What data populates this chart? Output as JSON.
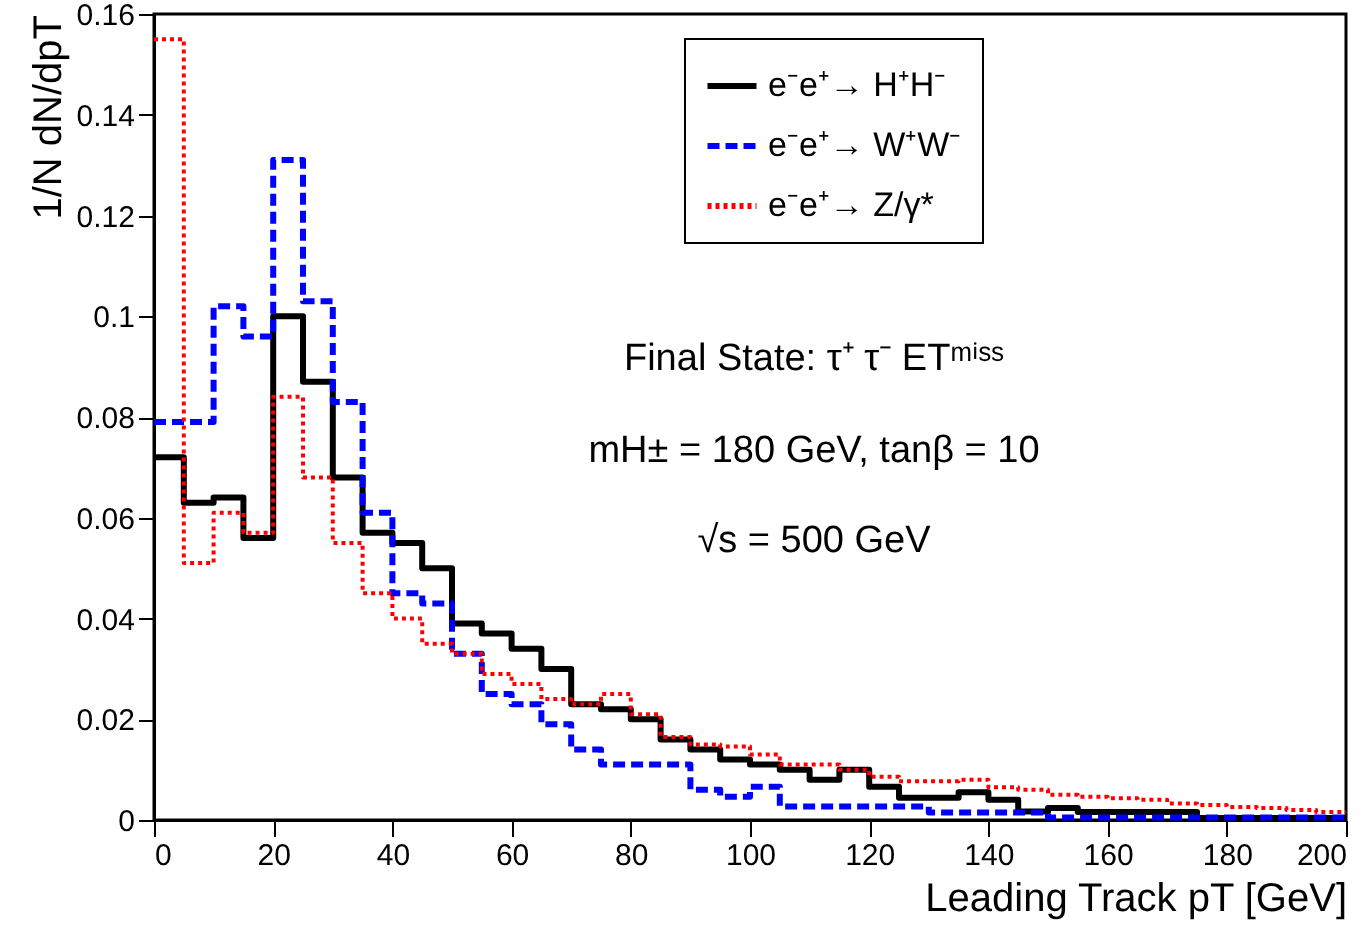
{
  "chart_data": {
    "type": "histogram",
    "xlabel": "Leading Track pT [GeV]",
    "ylabel": "1/N dN/dpT",
    "bins": [
      0,
      5,
      10,
      15,
      20,
      25,
      30,
      35,
      40,
      45,
      50,
      55,
      60,
      65,
      70,
      75,
      80,
      85,
      90,
      95,
      100,
      105,
      110,
      115,
      120,
      125,
      130,
      135,
      140,
      145,
      150,
      155,
      160,
      165,
      170,
      175,
      180,
      185,
      190,
      195,
      200
    ],
    "series": [
      {
        "name": "e⁻e⁺→ H⁺H⁻",
        "color": "#000000",
        "line_style": "solid",
        "values": [
          0.072,
          0.063,
          0.064,
          0.056,
          0.1,
          0.087,
          0.068,
          0.057,
          0.055,
          0.05,
          0.039,
          0.037,
          0.034,
          0.03,
          0.023,
          0.022,
          0.02,
          0.016,
          0.014,
          0.012,
          0.011,
          0.01,
          0.008,
          0.01,
          0.0066,
          0.0044,
          0.0044,
          0.0055,
          0.004,
          0.0017,
          0.0024,
          0.0016,
          0.0016,
          0.0016,
          0.0016,
          0.0004,
          0.0004,
          0.0004,
          0.0004,
          0.0004
        ]
      },
      {
        "name": "e⁻e⁺→ W⁺W⁻",
        "color": "#0000ff",
        "line_style": "dashed",
        "values": [
          0.079,
          0.079,
          0.102,
          0.096,
          0.131,
          0.103,
          0.083,
          0.061,
          0.045,
          0.043,
          0.033,
          0.025,
          0.023,
          0.019,
          0.014,
          0.011,
          0.011,
          0.011,
          0.006,
          0.0046,
          0.0066,
          0.0027,
          0.0027,
          0.0027,
          0.0027,
          0.0027,
          0.0015,
          0.0015,
          0.0015,
          0.0015,
          0.0005,
          0.0005,
          0.0005,
          0.0005,
          0.0005,
          0.0005,
          0.0005,
          0.0005,
          0.0005,
          0.0005
        ]
      },
      {
        "name": "e⁻e⁺→ Z/γ*",
        "color": "#ff0000",
        "line_style": "dotted",
        "values": [
          0.155,
          0.051,
          0.061,
          0.057,
          0.084,
          0.068,
          0.055,
          0.045,
          0.04,
          0.035,
          0.033,
          0.029,
          0.027,
          0.024,
          0.023,
          0.025,
          0.021,
          0.0165,
          0.015,
          0.0146,
          0.013,
          0.011,
          0.011,
          0.01,
          0.0086,
          0.0077,
          0.0077,
          0.008,
          0.0065,
          0.006,
          0.005,
          0.0046,
          0.0043,
          0.004,
          0.0033,
          0.003,
          0.0026,
          0.0024,
          0.002,
          0.0016
        ]
      }
    ],
    "xlim": [
      0,
      200
    ],
    "xticks": [
      0,
      20,
      40,
      60,
      80,
      100,
      120,
      140,
      160,
      180,
      200
    ],
    "ylim": [
      0,
      0.16
    ],
    "yticks": [
      0,
      0.02,
      0.04,
      0.06,
      0.08,
      0.1,
      0.12,
      0.14,
      0.16
    ],
    "grid": false,
    "legend": "top right",
    "annotations": [
      "Final State: τ⁺ τ⁻ ETᵐⁱˢˢ",
      "mH± = 180 GeV, tanβ = 10",
      "√s = 500  GeV"
    ]
  }
}
